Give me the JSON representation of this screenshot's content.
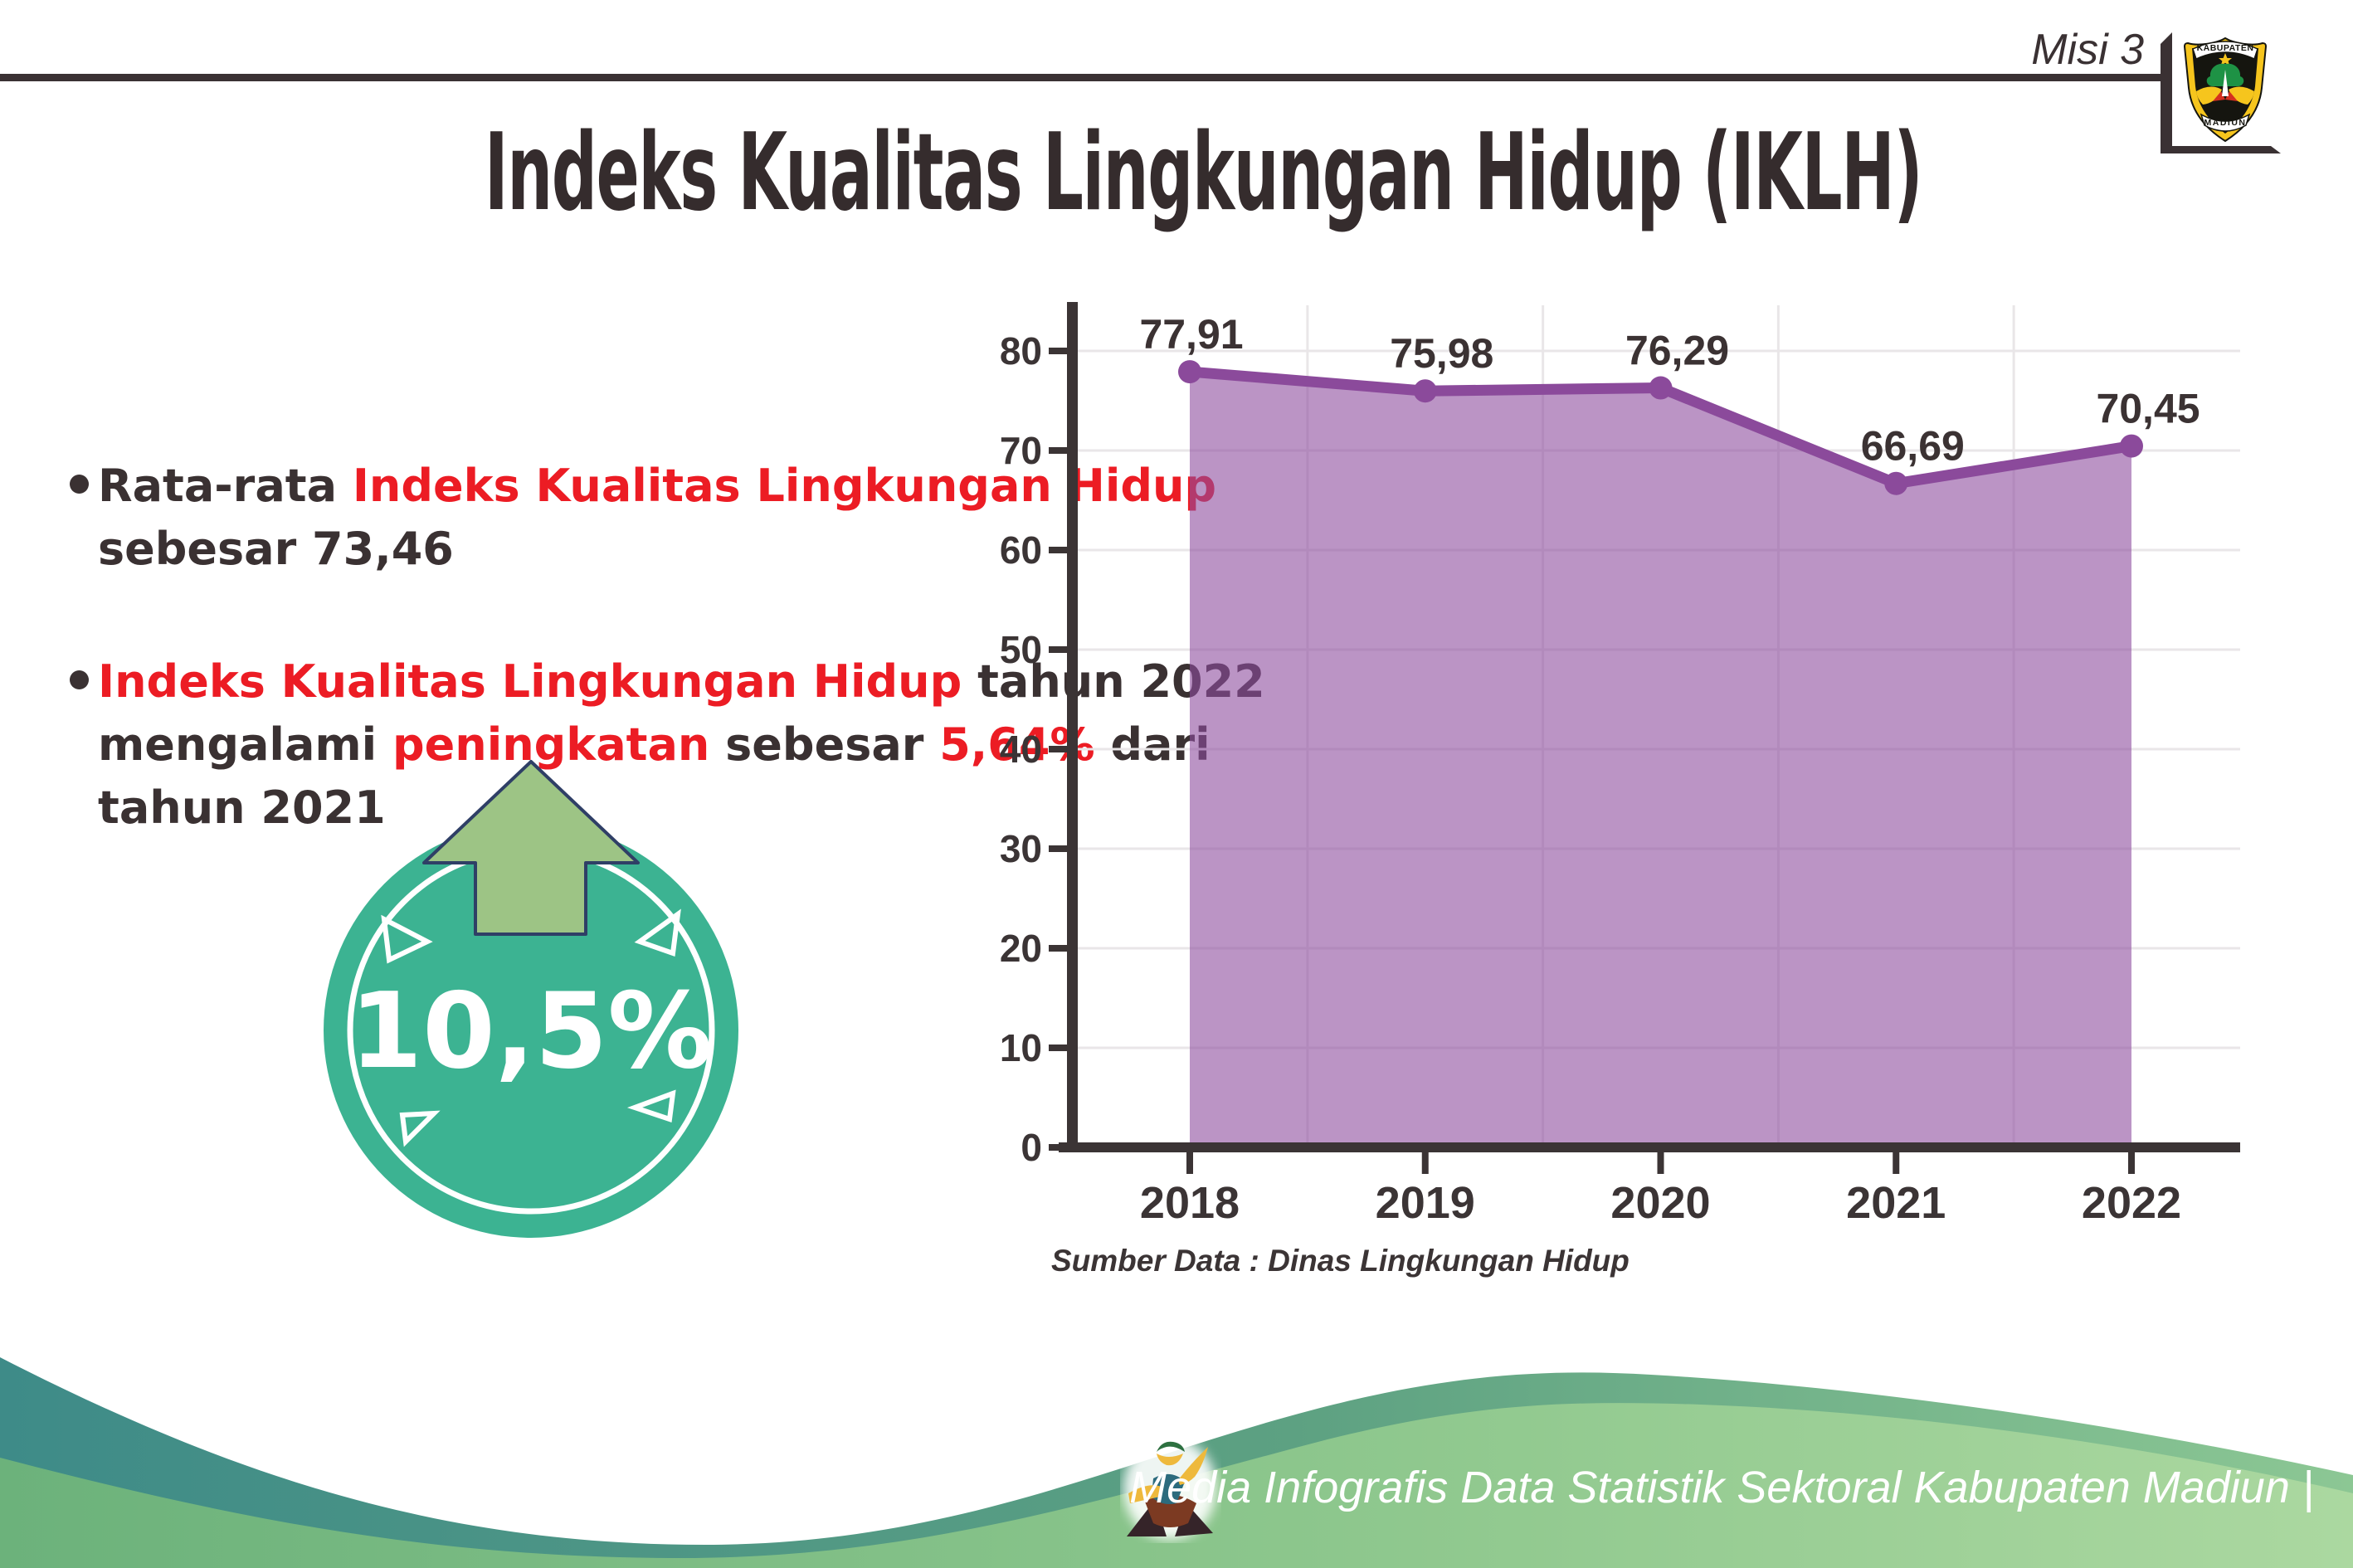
{
  "header": {
    "misi": "Misi 3"
  },
  "logo": {
    "top": "KABUPATEN",
    "bottom": "MADIUN"
  },
  "title": "Indeks Kualitas Lingkungan Hidup (IKLH)",
  "bullets": [
    {
      "lines": [
        [
          {
            "t": "Rata-rata ",
            "c": "dark"
          },
          {
            "t": "Indeks Kualitas Lingkungan Hidup",
            "c": "red"
          }
        ],
        [
          {
            "t": "sebesar 73,46",
            "c": "dark"
          }
        ]
      ]
    },
    {
      "lines": [
        [
          {
            "t": "Indeks Kualitas Lingkungan Hidup",
            "c": "red"
          },
          {
            "t": " tahun 2022",
            "c": "dark"
          }
        ],
        [
          {
            "t": "mengalami ",
            "c": "dark"
          },
          {
            "t": "peningkatan",
            "c": "red"
          },
          {
            "t": " sebesar ",
            "c": "dark"
          },
          {
            "t": "5,64%",
            "c": "red"
          },
          {
            "t": " dari",
            "c": "dark"
          }
        ],
        [
          {
            "t": "tahun 2021",
            "c": "dark"
          }
        ]
      ]
    }
  ],
  "badge": {
    "value": "10,5%",
    "circle_color": "#3cb392",
    "arrow_color": "#9dc485",
    "arrow_outline": "#2f3f66"
  },
  "chart_data": {
    "type": "area",
    "categories": [
      "2018",
      "2019",
      "2020",
      "2021",
      "2022"
    ],
    "series": [
      {
        "name": "IKLH",
        "values": [
          77.91,
          75.98,
          76.29,
          66.69,
          70.45
        ]
      }
    ],
    "value_labels": [
      "77,91",
      "75,98",
      "76,29",
      "66,69",
      "70,45"
    ],
    "ylim": [
      0,
      80
    ],
    "yticks": [
      0,
      10,
      20,
      30,
      40,
      50,
      60,
      70,
      80
    ],
    "grid": true,
    "legend": "none",
    "line_color": "#8b4a9b",
    "fill_color": "#8e4d9e",
    "fill_opacity": 0.6,
    "marker_radius": 14,
    "axis_color": "#3b3435",
    "grid_color": "#e9e6e8",
    "label_color": "#3b3233",
    "source_note": "Sumber Data : Dinas Lingkungan Hidup"
  },
  "footer": {
    "caption": "Media Infografis Data Statistik Sektoral Kabupaten Madiun |"
  }
}
